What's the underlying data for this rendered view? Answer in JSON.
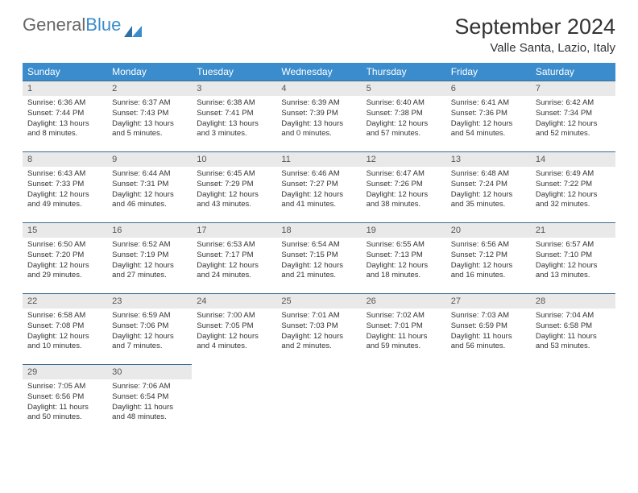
{
  "brand": {
    "part1": "General",
    "part2": "Blue"
  },
  "header": {
    "month_year": "September 2024",
    "location": "Valle Santa, Lazio, Italy"
  },
  "colors": {
    "header_bg": "#3a8ccc",
    "header_text": "#ffffff",
    "daynum_bg": "#e9e9e9",
    "daynum_text": "#555555",
    "rule": "#3a6b8f",
    "text": "#333333",
    "page_bg": "#ffffff"
  },
  "dow": [
    "Sunday",
    "Monday",
    "Tuesday",
    "Wednesday",
    "Thursday",
    "Friday",
    "Saturday"
  ],
  "weeks": [
    [
      {
        "n": "1",
        "sr": "6:36 AM",
        "ss": "7:44 PM",
        "dl": "13 hours and 8 minutes."
      },
      {
        "n": "2",
        "sr": "6:37 AM",
        "ss": "7:43 PM",
        "dl": "13 hours and 5 minutes."
      },
      {
        "n": "3",
        "sr": "6:38 AM",
        "ss": "7:41 PM",
        "dl": "13 hours and 3 minutes."
      },
      {
        "n": "4",
        "sr": "6:39 AM",
        "ss": "7:39 PM",
        "dl": "13 hours and 0 minutes."
      },
      {
        "n": "5",
        "sr": "6:40 AM",
        "ss": "7:38 PM",
        "dl": "12 hours and 57 minutes."
      },
      {
        "n": "6",
        "sr": "6:41 AM",
        "ss": "7:36 PM",
        "dl": "12 hours and 54 minutes."
      },
      {
        "n": "7",
        "sr": "6:42 AM",
        "ss": "7:34 PM",
        "dl": "12 hours and 52 minutes."
      }
    ],
    [
      {
        "n": "8",
        "sr": "6:43 AM",
        "ss": "7:33 PM",
        "dl": "12 hours and 49 minutes."
      },
      {
        "n": "9",
        "sr": "6:44 AM",
        "ss": "7:31 PM",
        "dl": "12 hours and 46 minutes."
      },
      {
        "n": "10",
        "sr": "6:45 AM",
        "ss": "7:29 PM",
        "dl": "12 hours and 43 minutes."
      },
      {
        "n": "11",
        "sr": "6:46 AM",
        "ss": "7:27 PM",
        "dl": "12 hours and 41 minutes."
      },
      {
        "n": "12",
        "sr": "6:47 AM",
        "ss": "7:26 PM",
        "dl": "12 hours and 38 minutes."
      },
      {
        "n": "13",
        "sr": "6:48 AM",
        "ss": "7:24 PM",
        "dl": "12 hours and 35 minutes."
      },
      {
        "n": "14",
        "sr": "6:49 AM",
        "ss": "7:22 PM",
        "dl": "12 hours and 32 minutes."
      }
    ],
    [
      {
        "n": "15",
        "sr": "6:50 AM",
        "ss": "7:20 PM",
        "dl": "12 hours and 29 minutes."
      },
      {
        "n": "16",
        "sr": "6:52 AM",
        "ss": "7:19 PM",
        "dl": "12 hours and 27 minutes."
      },
      {
        "n": "17",
        "sr": "6:53 AM",
        "ss": "7:17 PM",
        "dl": "12 hours and 24 minutes."
      },
      {
        "n": "18",
        "sr": "6:54 AM",
        "ss": "7:15 PM",
        "dl": "12 hours and 21 minutes."
      },
      {
        "n": "19",
        "sr": "6:55 AM",
        "ss": "7:13 PM",
        "dl": "12 hours and 18 minutes."
      },
      {
        "n": "20",
        "sr": "6:56 AM",
        "ss": "7:12 PM",
        "dl": "12 hours and 16 minutes."
      },
      {
        "n": "21",
        "sr": "6:57 AM",
        "ss": "7:10 PM",
        "dl": "12 hours and 13 minutes."
      }
    ],
    [
      {
        "n": "22",
        "sr": "6:58 AM",
        "ss": "7:08 PM",
        "dl": "12 hours and 10 minutes."
      },
      {
        "n": "23",
        "sr": "6:59 AM",
        "ss": "7:06 PM",
        "dl": "12 hours and 7 minutes."
      },
      {
        "n": "24",
        "sr": "7:00 AM",
        "ss": "7:05 PM",
        "dl": "12 hours and 4 minutes."
      },
      {
        "n": "25",
        "sr": "7:01 AM",
        "ss": "7:03 PM",
        "dl": "12 hours and 2 minutes."
      },
      {
        "n": "26",
        "sr": "7:02 AM",
        "ss": "7:01 PM",
        "dl": "11 hours and 59 minutes."
      },
      {
        "n": "27",
        "sr": "7:03 AM",
        "ss": "6:59 PM",
        "dl": "11 hours and 56 minutes."
      },
      {
        "n": "28",
        "sr": "7:04 AM",
        "ss": "6:58 PM",
        "dl": "11 hours and 53 minutes."
      }
    ],
    [
      {
        "n": "29",
        "sr": "7:05 AM",
        "ss": "6:56 PM",
        "dl": "11 hours and 50 minutes."
      },
      {
        "n": "30",
        "sr": "7:06 AM",
        "ss": "6:54 PM",
        "dl": "11 hours and 48 minutes."
      },
      null,
      null,
      null,
      null,
      null
    ]
  ],
  "labels": {
    "sunrise": "Sunrise:",
    "sunset": "Sunset:",
    "daylight": "Daylight:"
  }
}
